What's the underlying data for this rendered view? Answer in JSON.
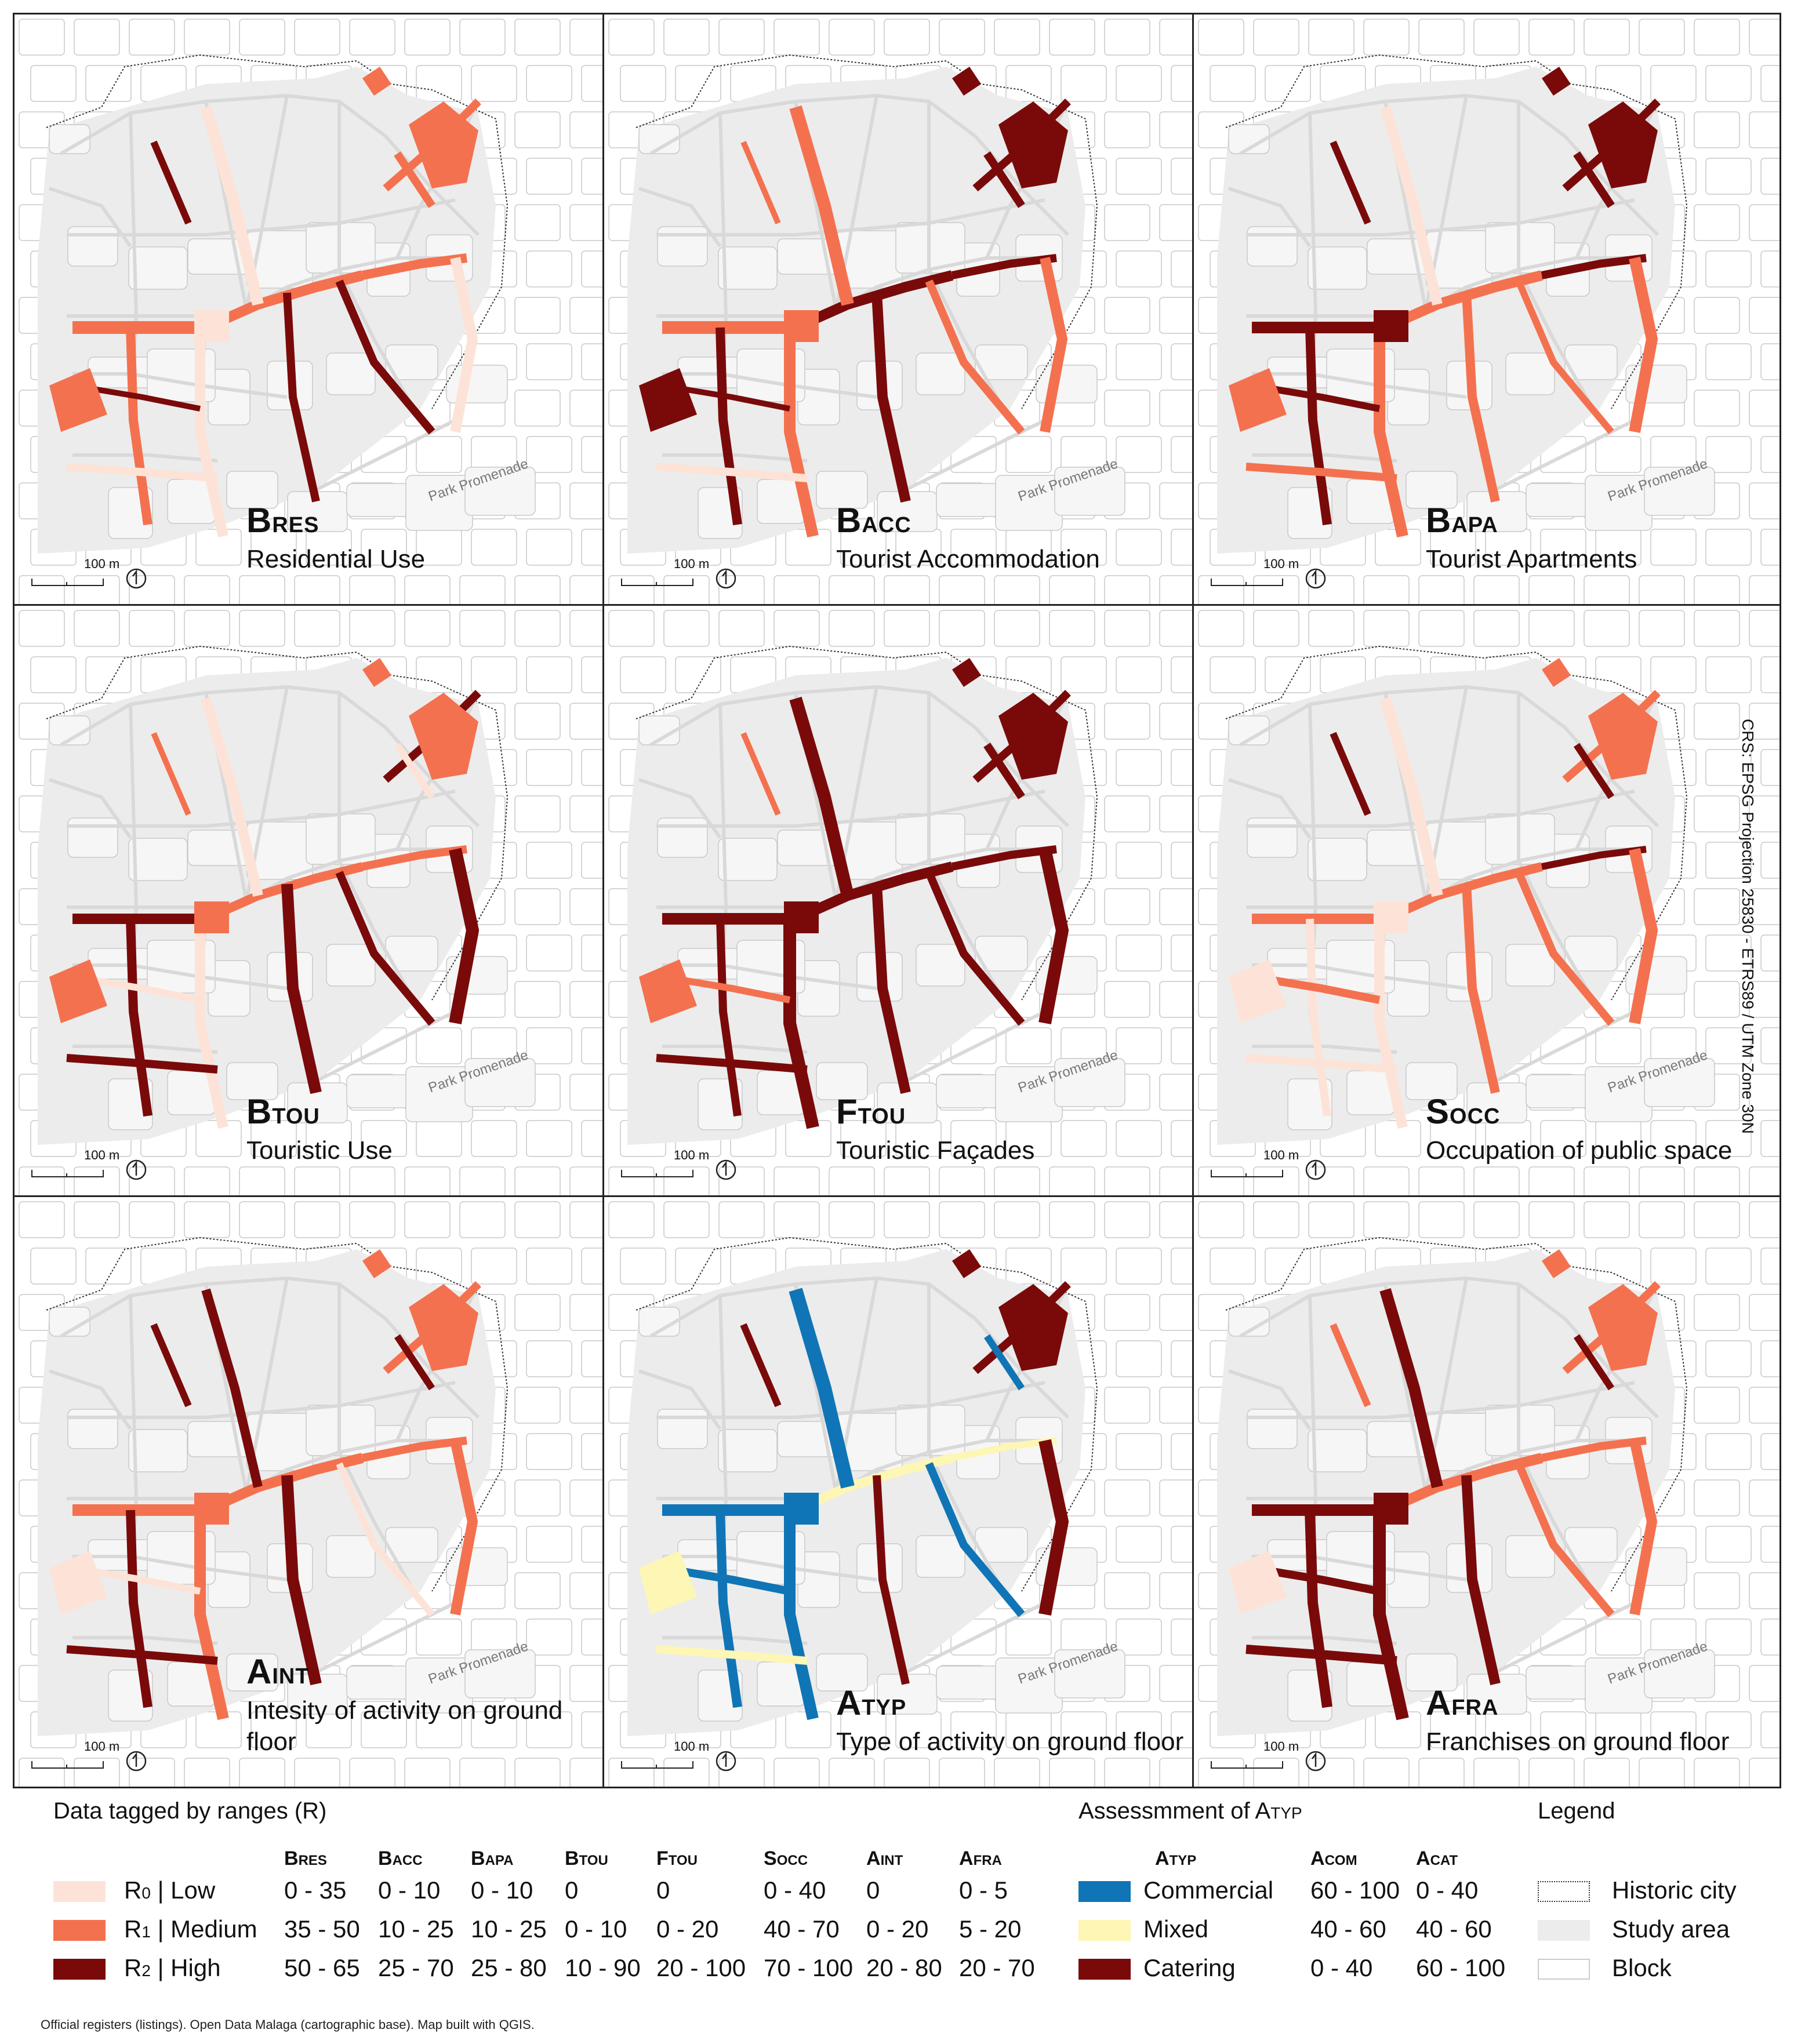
{
  "panels": [
    {
      "code_main": "B",
      "code_sub": "RES",
      "name": "Residential Use"
    },
    {
      "code_main": "B",
      "code_sub": "ACC",
      "name": "Tourist Accommodation"
    },
    {
      "code_main": "B",
      "code_sub": "APA",
      "name": "Tourist Apartments"
    },
    {
      "code_main": "B",
      "code_sub": "TOU",
      "name": "Touristic Use"
    },
    {
      "code_main": "F",
      "code_sub": "TOU",
      "name": "Touristic Façades"
    },
    {
      "code_main": "S",
      "code_sub": "OCC",
      "name": "Occupation of public space"
    },
    {
      "code_main": "A",
      "code_sub": "INT",
      "name": "Intesity of activity on ground floor"
    },
    {
      "code_main": "A",
      "code_sub": "TYP",
      "name": "Type of activity on ground floor"
    },
    {
      "code_main": "A",
      "code_sub": "FRA",
      "name": "Franchises on ground floor"
    }
  ],
  "map_labels": {
    "park": "Park Promenade",
    "scale": "100 m"
  },
  "crs_label": "CRS: EPSG Projection 25830 - ETRS89 / UTM Zone 30N",
  "colors": {
    "r0": "#fde3d7",
    "r1": "#f4714f",
    "r2": "#7a0a0a",
    "commercial": "#0f75b6",
    "mixed": "#fdf6b5",
    "catering": "#7a0a0a",
    "study": "#ececec",
    "block_stroke": "#c9c9c9"
  },
  "legend": {
    "ranges_title": "Data tagged by ranges (R)",
    "range_rows": [
      {
        "r_main": "R",
        "r_sub": "0",
        "label": " | Low"
      },
      {
        "r_main": "R",
        "r_sub": "1",
        "label": " | Medium"
      },
      {
        "r_main": "R",
        "r_sub": "2",
        "label": " | High"
      }
    ],
    "range_cols": [
      {
        "h_main": "B",
        "h_sub": "RES",
        "vals": [
          "0 - 35",
          "35 - 50",
          "50 - 65"
        ]
      },
      {
        "h_main": "B",
        "h_sub": "ACC",
        "vals": [
          "0 - 10",
          "10 - 25",
          "25 - 70"
        ]
      },
      {
        "h_main": "B",
        "h_sub": "APA",
        "vals": [
          "0 - 10",
          "10 - 25",
          "25 - 80"
        ]
      },
      {
        "h_main": "B",
        "h_sub": "TOU",
        "vals": [
          "0",
          "0 - 10",
          "10 - 90"
        ]
      },
      {
        "h_main": "F",
        "h_sub": "TOU",
        "vals": [
          "0",
          "0 - 20",
          "20 - 100"
        ]
      },
      {
        "h_main": "S",
        "h_sub": "OCC",
        "vals": [
          "0 - 40",
          "40 - 70",
          "70 - 100"
        ]
      },
      {
        "h_main": "A",
        "h_sub": "INT",
        "vals": [
          "0",
          "0 - 20",
          "20 - 80"
        ]
      },
      {
        "h_main": "A",
        "h_sub": "FRA",
        "vals": [
          "0 - 5",
          "5 - 20",
          "20 - 70"
        ]
      }
    ],
    "assess_title_main": "Assessmment of A",
    "assess_title_sub": "TYP",
    "assess_col_main": "A",
    "assess_col_sub": "TYP",
    "assess_h2_main": "A",
    "assess_h2_sub": "COM",
    "assess_h3_main": "A",
    "assess_h3_sub": "CAT",
    "assess_rows": [
      {
        "label": "Commercial",
        "com": "60 - 100",
        "cat": "0 - 40"
      },
      {
        "label": "Mixed",
        "com": "40 - 60",
        "cat": "40 - 60"
      },
      {
        "label": "Catering",
        "com": "0 - 40",
        "cat": "60 - 100"
      }
    ],
    "legend_title": "Legend",
    "legend_items": [
      "Historic city",
      "Study area",
      "Block"
    ]
  },
  "footnote": "Official registers (listings). Open Data Malaga (cartographic base). Map built with QGIS."
}
